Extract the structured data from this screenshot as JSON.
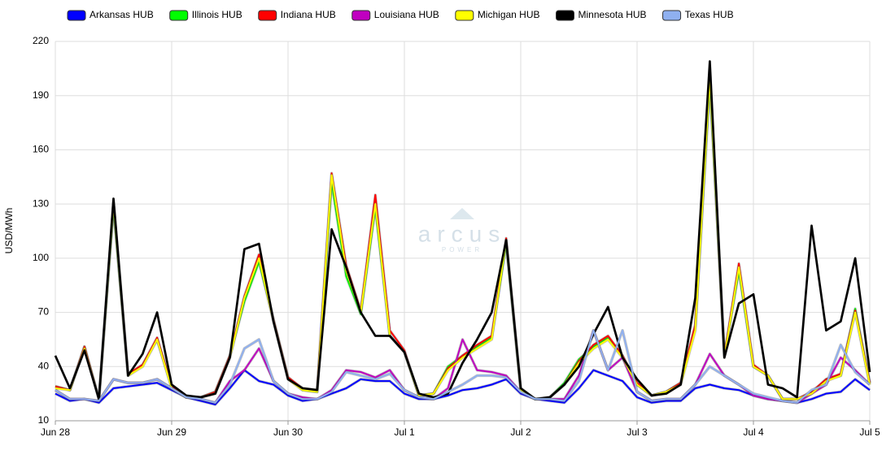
{
  "chart_data": {
    "type": "line",
    "y_label": "USD/MWh",
    "watermark": {
      "title": "arcus",
      "subtitle": "POWER"
    },
    "categories": [
      "Jun 28",
      null,
      null,
      null,
      null,
      null,
      null,
      null,
      "Jun 29",
      null,
      null,
      null,
      null,
      null,
      null,
      null,
      "Jun 30",
      null,
      null,
      null,
      null,
      null,
      null,
      null,
      "Jul 1",
      null,
      null,
      null,
      null,
      null,
      null,
      null,
      "Jul 2",
      null,
      null,
      null,
      null,
      null,
      null,
      null,
      "Jul 3",
      null,
      null,
      null,
      null,
      null,
      null,
      null,
      "Jul 4",
      null,
      null,
      null,
      null,
      null,
      null,
      null,
      "Jul 5"
    ],
    "ylim": [
      10,
      220
    ],
    "yticks": [
      10,
      40,
      70,
      100,
      130,
      160,
      190,
      220
    ],
    "grid": true,
    "legend": "top",
    "series": [
      {
        "name": "Arkansas HUB",
        "color": "#0000ff",
        "values": [
          25,
          21,
          22,
          20,
          28,
          29,
          30,
          31,
          27,
          23,
          21,
          19,
          28,
          38,
          32,
          30,
          24,
          21,
          22,
          25,
          28,
          33,
          32,
          32,
          25,
          22,
          22,
          24,
          27,
          28,
          30,
          33,
          25,
          22,
          21,
          20,
          28,
          38,
          35,
          32,
          23,
          20,
          21,
          21,
          28,
          30,
          28,
          27,
          24,
          22,
          21,
          20,
          22,
          25,
          26,
          33,
          27
        ]
      },
      {
        "name": "Illinois HUB",
        "color": "#00ff00",
        "values": [
          29,
          27,
          51,
          22,
          128,
          35,
          41,
          55,
          29,
          23,
          23,
          26,
          46,
          76,
          98,
          66,
          34,
          27,
          26,
          142,
          90,
          69,
          128,
          57,
          48,
          24,
          25,
          40,
          46,
          51,
          56,
          108,
          27,
          22,
          23,
          31,
          44,
          51,
          56,
          46,
          30,
          24,
          26,
          31,
          62,
          197,
          46,
          93,
          40,
          35,
          22,
          22,
          25,
          33,
          35,
          72,
          31
        ]
      },
      {
        "name": "Indiana HUB",
        "color": "#ff0000",
        "values": [
          29,
          27,
          51,
          22,
          131,
          36,
          41,
          56,
          29,
          23,
          23,
          26,
          46,
          79,
          102,
          66,
          34,
          28,
          27,
          147,
          96,
          71,
          135,
          60,
          49,
          24,
          25,
          39,
          46,
          52,
          57,
          111,
          28,
          22,
          23,
          30,
          43,
          52,
          57,
          46,
          31,
          24,
          26,
          31,
          63,
          203,
          46,
          97,
          41,
          35,
          22,
          22,
          26,
          33,
          36,
          71,
          31
        ]
      },
      {
        "name": "Louisiana HUB",
        "color": "#c000c0",
        "values": [
          27,
          22,
          22,
          21,
          33,
          31,
          31,
          33,
          28,
          23,
          22,
          20,
          32,
          38,
          50,
          32,
          25,
          23,
          22,
          27,
          38,
          37,
          34,
          38,
          27,
          23,
          22,
          28,
          55,
          38,
          37,
          35,
          26,
          22,
          22,
          22,
          35,
          60,
          38,
          45,
          26,
          21,
          22,
          22,
          30,
          47,
          35,
          30,
          24,
          22,
          21,
          20,
          25,
          30,
          45,
          38,
          30
        ]
      },
      {
        "name": "Michigan HUB",
        "color": "#ffff00",
        "values": [
          28,
          27,
          50,
          22,
          130,
          35,
          40,
          55,
          28,
          23,
          23,
          25,
          45,
          78,
          100,
          65,
          33,
          27,
          26,
          146,
          93,
          70,
          130,
          57,
          48,
          24,
          25,
          38,
          45,
          50,
          55,
          110,
          27,
          22,
          23,
          30,
          42,
          50,
          55,
          45,
          30,
          24,
          26,
          30,
          60,
          200,
          45,
          95,
          40,
          35,
          22,
          22,
          25,
          32,
          35,
          70,
          30
        ]
      },
      {
        "name": "Minnesota HUB",
        "color": "#000000",
        "values": [
          46,
          28,
          49,
          22,
          133,
          35,
          47,
          70,
          30,
          24,
          23,
          25,
          45,
          105,
          108,
          65,
          33,
          28,
          27,
          116,
          95,
          70,
          57,
          57,
          48,
          25,
          23,
          25,
          42,
          55,
          70,
          110,
          28,
          22,
          23,
          30,
          40,
          58,
          73,
          45,
          33,
          24,
          25,
          30,
          78,
          209,
          45,
          75,
          80,
          30,
          28,
          23,
          118,
          60,
          65,
          100,
          37
        ]
      },
      {
        "name": "Texas HUB",
        "color": "#8fb0f0",
        "values": [
          27,
          22,
          22,
          21,
          33,
          31,
          31,
          33,
          28,
          23,
          22,
          20,
          30,
          50,
          55,
          32,
          25,
          22,
          22,
          26,
          37,
          35,
          33,
          36,
          27,
          23,
          22,
          26,
          30,
          35,
          35,
          34,
          26,
          22,
          22,
          21,
          32,
          60,
          38,
          60,
          26,
          21,
          22,
          22,
          30,
          40,
          35,
          30,
          25,
          23,
          21,
          20,
          27,
          30,
          52,
          37,
          30
        ]
      }
    ]
  }
}
